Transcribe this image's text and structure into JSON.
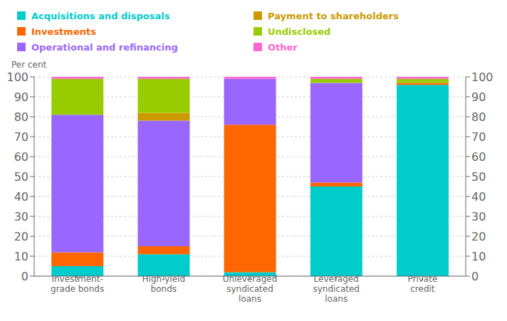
{
  "chart_data": {
    "type": "bar",
    "stacked": true,
    "ylabel": "Per cent",
    "categories": [
      "Investment-\ngrade bonds",
      "High-yield\nbonds",
      "Unleveraged\nsyndicated\nloans",
      "Leveraged\nsyndicated\nloans",
      "Private\ncredit"
    ],
    "series": [
      {
        "name": "Acquisitions and disposals",
        "color": "#00CCCC",
        "values": [
          5,
          11,
          2,
          45,
          96
        ]
      },
      {
        "name": "Investments",
        "color": "#FF6600",
        "values": [
          7,
          4,
          74,
          2,
          1
        ]
      },
      {
        "name": "Operational and refinancing",
        "color": "#9966FF",
        "values": [
          69,
          63,
          23,
          50,
          0
        ]
      },
      {
        "name": "Payment to shareholders",
        "color": "#CC9900",
        "values": [
          0,
          4,
          0,
          0,
          0
        ]
      },
      {
        "name": "Undisclosed",
        "color": "#99CC00",
        "values": [
          18,
          17,
          0,
          2,
          2
        ]
      },
      {
        "name": "Other",
        "color": "#FF66CC",
        "values": [
          1,
          1,
          1,
          1,
          1
        ]
      }
    ],
    "ylim": [
      0,
      100
    ],
    "yticks": [
      0,
      10,
      20,
      30,
      40,
      50,
      60,
      70,
      80,
      90,
      100
    ],
    "y2lim": [
      0,
      100
    ],
    "y2ticks": [
      0,
      10,
      20,
      30,
      40,
      50,
      60,
      70,
      80,
      90,
      100
    ],
    "grid": true,
    "legend": "top"
  }
}
